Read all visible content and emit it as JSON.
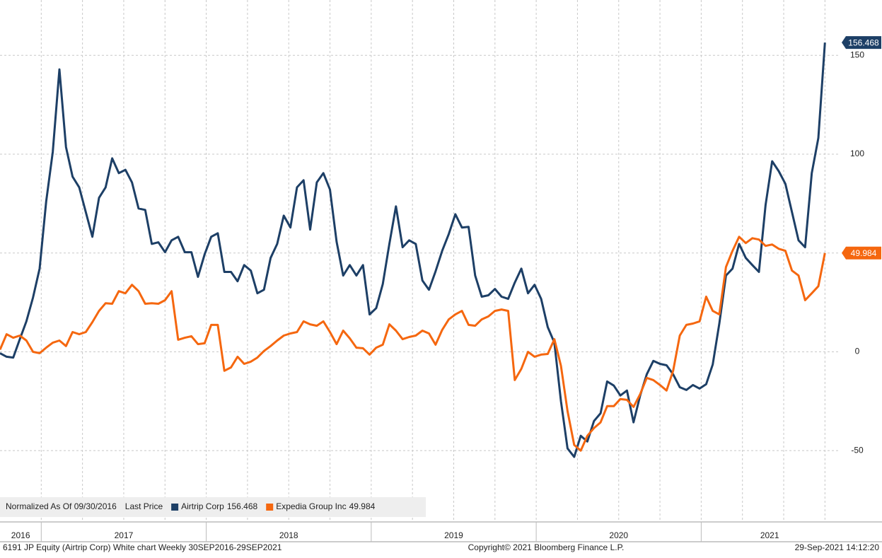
{
  "chart_data": {
    "type": "line",
    "legend_title": "Normalized As Of 09/30/2016",
    "legend_field": "Last Price",
    "footer_left": "6191 JP Equity (Airtrip Corp) White chart  Weekly 30SEP2016-29SEP2021",
    "copyright": "Copyright© 2021 Bloomberg Finance L.P.",
    "timestamp": "29-Sep-2021 14:12:20",
    "x": [
      2016.75,
      2016.79,
      2016.83,
      2016.87,
      2016.91,
      2016.95,
      2016.99,
      2017.03,
      2017.07,
      2017.11,
      2017.15,
      2017.19,
      2017.23,
      2017.27,
      2017.31,
      2017.35,
      2017.39,
      2017.43,
      2017.47,
      2017.51,
      2017.55,
      2017.59,
      2017.63,
      2017.67,
      2017.71,
      2017.75,
      2017.79,
      2017.83,
      2017.87,
      2017.91,
      2017.95,
      2017.99,
      2018.03,
      2018.07,
      2018.11,
      2018.15,
      2018.19,
      2018.23,
      2018.27,
      2018.31,
      2018.35,
      2018.39,
      2018.43,
      2018.47,
      2018.51,
      2018.55,
      2018.59,
      2018.63,
      2018.67,
      2018.71,
      2018.75,
      2018.79,
      2018.83,
      2018.87,
      2018.91,
      2018.95,
      2018.99,
      2019.03,
      2019.07,
      2019.11,
      2019.15,
      2019.19,
      2019.23,
      2019.27,
      2019.31,
      2019.35,
      2019.39,
      2019.43,
      2019.47,
      2019.51,
      2019.55,
      2019.59,
      2019.63,
      2019.67,
      2019.71,
      2019.75,
      2019.79,
      2019.83,
      2019.87,
      2019.91,
      2019.95,
      2019.99,
      2020.03,
      2020.07,
      2020.11,
      2020.15,
      2020.19,
      2020.23,
      2020.27,
      2020.31,
      2020.35,
      2020.39,
      2020.43,
      2020.47,
      2020.51,
      2020.55,
      2020.59,
      2020.63,
      2020.67,
      2020.71,
      2020.75,
      2020.79,
      2020.83,
      2020.87,
      2020.91,
      2020.95,
      2020.99,
      2021.03,
      2021.07,
      2021.11,
      2021.15,
      2021.19,
      2021.23,
      2021.27,
      2021.31,
      2021.35,
      2021.39,
      2021.43,
      2021.47,
      2021.51,
      2021.55,
      2021.59,
      2021.63,
      2021.67,
      2021.71,
      2021.75
    ],
    "series": [
      {
        "name": "Airtrip Corp",
        "color": "#1d3f66",
        "values": [
          -0.7,
          -2.5,
          -2.9,
          6.4,
          15.4,
          27.5,
          42.1,
          76.1,
          101.1,
          142.9,
          103.6,
          88.6,
          83.2,
          70.7,
          58.2,
          77.9,
          83.2,
          97.9,
          90.4,
          92.1,
          85.7,
          72.5,
          71.8,
          54.6,
          55.4,
          50.4,
          56.4,
          58.2,
          50.4,
          50.4,
          37.9,
          49.3,
          58.2,
          60,
          40.4,
          40.4,
          35.7,
          43.9,
          41.1,
          29.6,
          31.4,
          47.5,
          54.6,
          68.9,
          62.9,
          83.2,
          86.8,
          61.8,
          85.7,
          90.4,
          82.1,
          55.7,
          38.6,
          43.9,
          38.6,
          43.9,
          18.9,
          22.1,
          34.3,
          54.6,
          73.6,
          52.9,
          56.4,
          54.6,
          36.1,
          31.4,
          40.7,
          51.1,
          59.6,
          69.6,
          62.9,
          63.2,
          38.6,
          27.9,
          28.6,
          31.8,
          27.9,
          26.8,
          35,
          42.1,
          29.6,
          33.9,
          26.8,
          12.5,
          4.6,
          -25,
          -48.9,
          -53.2,
          -42.5,
          -45.4,
          -35,
          -31.1,
          -15,
          -17.1,
          -22.1,
          -19.6,
          -35.7,
          -22.1,
          -11.4,
          -4.6,
          -6.1,
          -6.8,
          -11.4,
          -17.9,
          -19.3,
          -16.8,
          -18.6,
          -16.4,
          -6.4,
          14.3,
          38.6,
          42.1,
          54.6,
          47.5,
          43.9,
          40.4,
          74.3,
          96.4,
          91.4,
          85,
          70.7,
          56.4,
          52.9,
          90.4,
          108.2,
          156.468
        ]
      },
      {
        "name": "Expedia Group Inc",
        "color": "#f5670f",
        "values": [
          1.1,
          8.9,
          7.1,
          8.2,
          5.7,
          0,
          -0.7,
          2.1,
          4.6,
          5.7,
          2.9,
          10,
          8.9,
          10,
          15,
          20.7,
          24.6,
          24.3,
          30.7,
          29.6,
          33.9,
          30.7,
          24.3,
          24.6,
          24.3,
          26.1,
          30.7,
          6.1,
          7.1,
          7.9,
          3.9,
          4.3,
          13.6,
          13.6,
          -9.6,
          -7.9,
          -2.5,
          -6.1,
          -5,
          -2.9,
          0.4,
          2.9,
          5.7,
          8.2,
          9.3,
          10,
          15.4,
          13.9,
          13.2,
          15.4,
          10,
          3.9,
          10.7,
          6.8,
          2.1,
          1.8,
          -1.4,
          2.1,
          3.6,
          13.9,
          10.7,
          6.4,
          7.5,
          8.2,
          10.7,
          9.3,
          3.6,
          11.1,
          16.4,
          18.9,
          20.7,
          13.6,
          13.2,
          16.4,
          17.9,
          20.7,
          21.4,
          20.7,
          -14.3,
          -8.6,
          0,
          -2.5,
          -1.4,
          -1.1,
          6.4,
          -7.1,
          -30,
          -47.1,
          -50,
          -42.5,
          -38.6,
          -35.7,
          -27.5,
          -27.5,
          -23.9,
          -24.3,
          -27.9,
          -21.4,
          -13.2,
          -14.3,
          -16.8,
          -19.6,
          -9.6,
          8.2,
          13.6,
          14.3,
          15.4,
          27.9,
          20.7,
          18.9,
          42.9,
          51.1,
          58.2,
          55,
          57.5,
          56.8,
          53.6,
          54.3,
          52.1,
          51.1,
          41.1,
          38.6,
          26.1,
          29.6,
          33.2,
          49.984
        ]
      }
    ],
    "xlim": [
      2016.75,
      2021.83
    ],
    "xticks": [
      2016,
      2017,
      2018,
      2019,
      2020,
      2021
    ],
    "xgrid": [
      2017,
      2017.25,
      2017.5,
      2017.75,
      2018,
      2018.25,
      2018.5,
      2018.75,
      2019,
      2019.25,
      2019.5,
      2019.75,
      2020,
      2020.25,
      2020.5,
      2020.75,
      2021,
      2021.25,
      2021.5,
      2021.75
    ],
    "ylim": [
      -85,
      178
    ],
    "yticks": [
      -50,
      0,
      50,
      100,
      150
    ],
    "grid": true,
    "legend": "bottom-left"
  }
}
